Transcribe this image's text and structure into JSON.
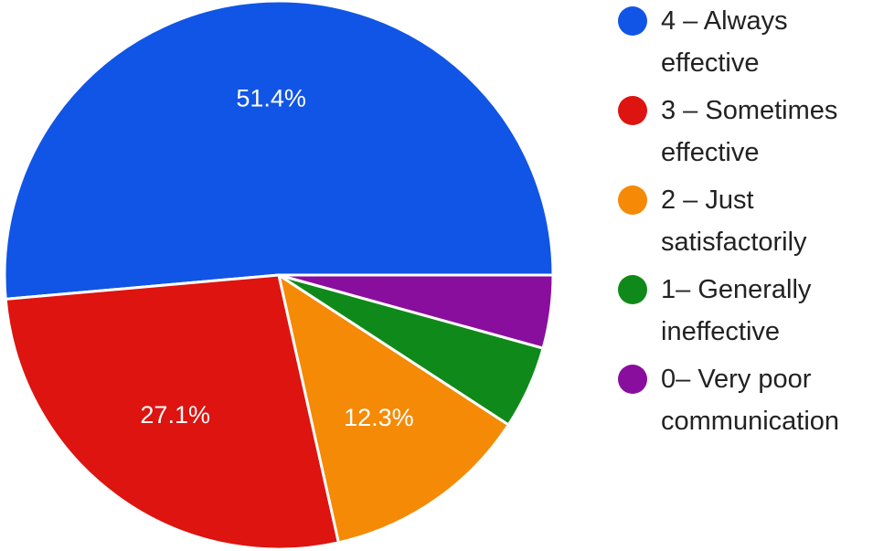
{
  "chart_data": {
    "type": "pie",
    "start_angle_deg": 0,
    "direction": "counterclockwise",
    "legend_position": "right",
    "slices": [
      {
        "label": "4 – Always effective",
        "legend_lines": "4 – Always\neffective",
        "value": 51.4,
        "value_label": "51.4%",
        "color": "#1155e6"
      },
      {
        "label": "3 – Sometimes effective",
        "legend_lines": "3 – Sometimes\neffective",
        "value": 27.1,
        "value_label": "27.1%",
        "color": "#dd1410"
      },
      {
        "label": "2 – Just satisfactorily",
        "legend_lines": "2 – Just\nsatisfactorily",
        "value": 12.3,
        "value_label": "12.3%",
        "color": "#f48a06"
      },
      {
        "label": "1– Generally ineffective",
        "legend_lines": "1– Generally\nineffective",
        "value": 4.9,
        "value_label": "",
        "color": "#0f8a1a"
      },
      {
        "label": "0– Very poor communication",
        "legend_lines": "0– Very poor\ncommunication",
        "value": 4.3,
        "value_label": "",
        "color": "#8a0e9e"
      }
    ]
  }
}
